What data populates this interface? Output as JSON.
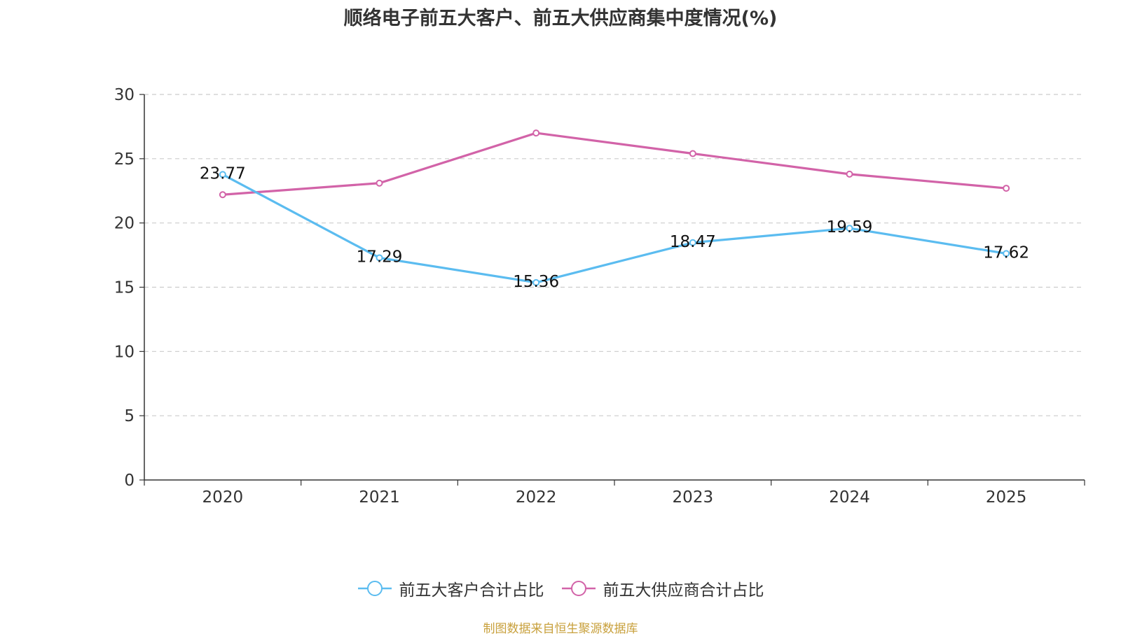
{
  "chart_data": {
    "type": "line",
    "title": "顺络电子前五大客户、前五大供应商集中度情况(%)",
    "categories": [
      "2020",
      "2021",
      "2022",
      "2023",
      "2024",
      "2025"
    ],
    "series": [
      {
        "name": "前五大客户合计占比",
        "color": "#5bbcf0",
        "values": [
          23.77,
          17.29,
          15.36,
          18.47,
          19.59,
          17.62
        ],
        "labels": [
          "23.77",
          "17.29",
          "15.36",
          "18.47",
          "19.59",
          "17.62"
        ]
      },
      {
        "name": "前五大供应商合计占比",
        "color": "#d263a8",
        "values": [
          22.2,
          23.1,
          27.0,
          25.4,
          23.8,
          22.7
        ]
      }
    ],
    "yticks": [
      "0",
      "5",
      "10",
      "15",
      "20",
      "25",
      "30"
    ],
    "ylim": [
      0,
      30
    ],
    "grid": true,
    "legend_position": "bottom-center",
    "xlabel": "",
    "ylabel": ""
  },
  "source_note": "制图数据来自恒生聚源数据库"
}
